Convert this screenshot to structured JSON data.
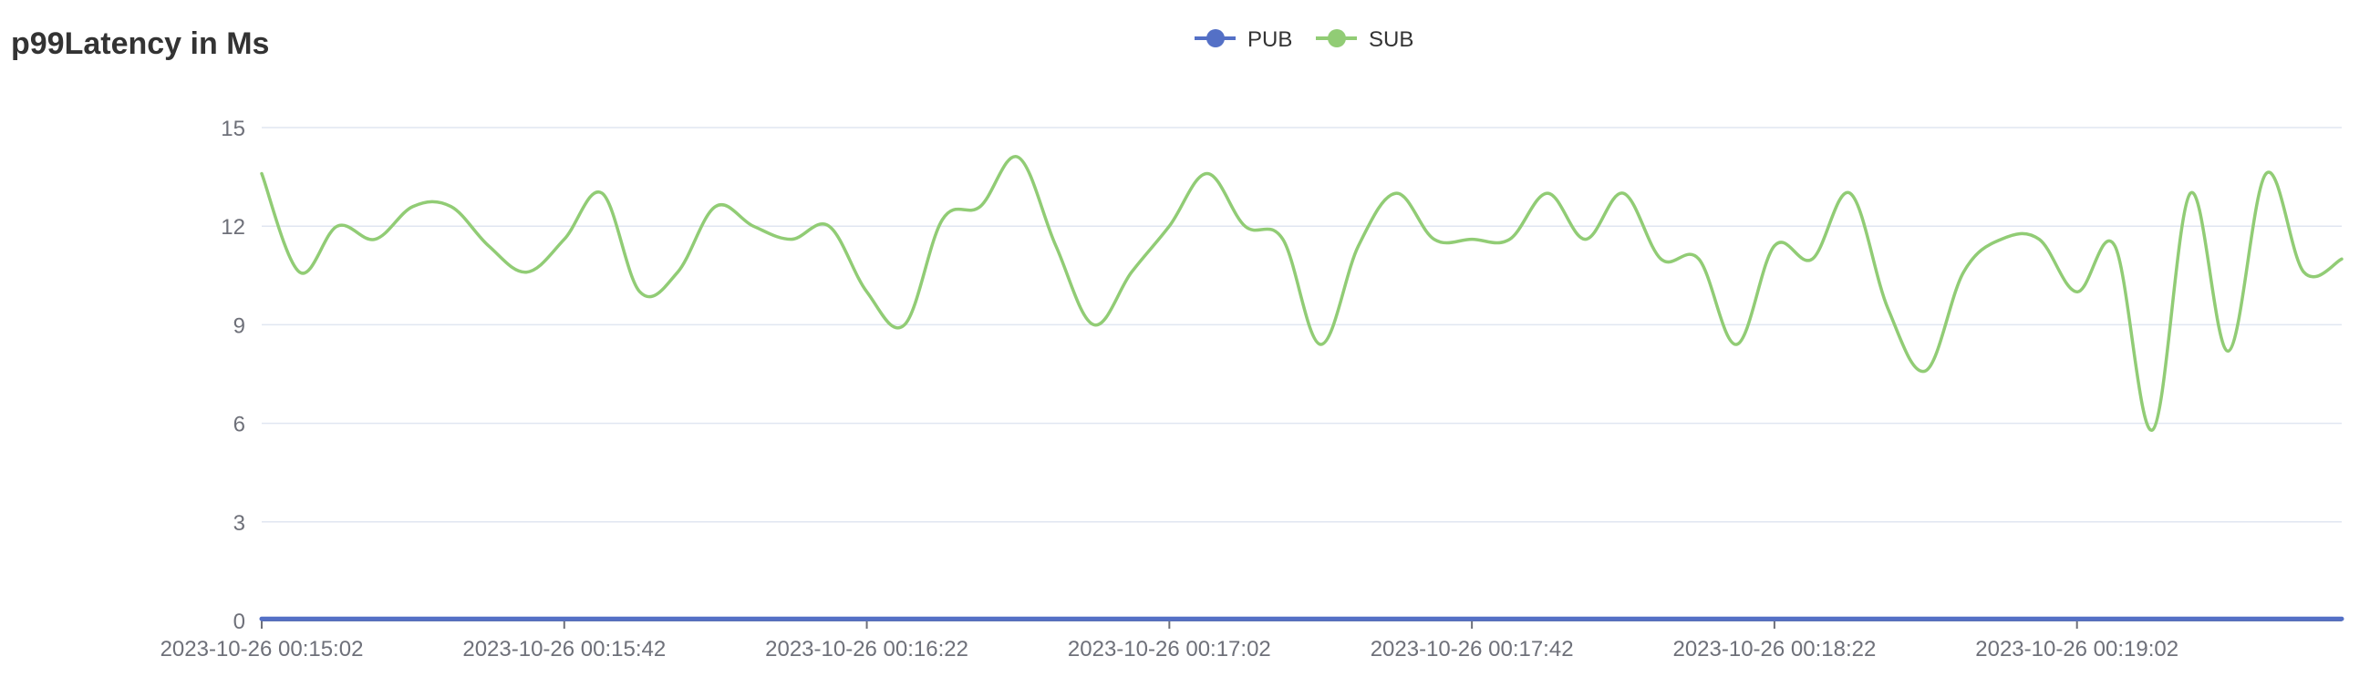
{
  "chart_data": {
    "type": "line",
    "title": "p99Latency in Ms",
    "xlabel": "",
    "ylabel": "",
    "ylim": [
      0,
      15
    ],
    "yticks": [
      "0",
      "3",
      "6",
      "9",
      "12",
      "15"
    ],
    "grid": true,
    "legend_position": "top-center",
    "x_tick_labels": [
      "2023-10-26 00:15:02",
      "2023-10-26 00:15:42",
      "2023-10-26 00:16:22",
      "2023-10-26 00:17:02",
      "2023-10-26 00:17:42",
      "2023-10-26 00:18:22",
      "2023-10-26 00:19:02"
    ],
    "x_range_seconds": [
      0,
      275
    ],
    "x_tick_seconds": [
      0,
      40,
      80,
      120,
      160,
      200,
      240
    ],
    "series": [
      {
        "name": "PUB",
        "color": "#5470c6",
        "x": [
          0,
          275
        ],
        "values": [
          0.05,
          0.05
        ]
      },
      {
        "name": "SUB",
        "color": "#91cc75",
        "x": [
          0,
          5,
          10,
          15,
          20,
          25,
          30,
          35,
          40,
          45,
          50,
          55,
          60,
          65,
          70,
          75,
          80,
          85,
          90,
          95,
          100,
          105,
          110,
          115,
          120,
          125,
          130,
          135,
          140,
          145,
          150,
          155,
          160,
          165,
          170,
          175,
          180,
          185,
          190,
          195,
          200,
          205,
          210,
          215,
          220,
          225,
          230,
          235,
          240,
          245,
          250,
          255,
          260,
          265,
          270,
          275
        ],
        "values": [
          13.6,
          10.6,
          12.0,
          11.6,
          12.6,
          12.6,
          11.4,
          10.6,
          11.6,
          13.0,
          10.0,
          10.6,
          12.6,
          12.0,
          11.6,
          12.0,
          10.0,
          9.0,
          12.2,
          12.6,
          14.1,
          11.4,
          9.0,
          10.6,
          12.0,
          13.6,
          12.0,
          11.6,
          8.4,
          11.4,
          13.0,
          11.6,
          11.6,
          11.6,
          13.0,
          11.6,
          13.0,
          11.0,
          11.0,
          8.4,
          11.4,
          11.0,
          13.0,
          9.5,
          7.6,
          10.6,
          11.6,
          11.6,
          10.0,
          11.4,
          5.8,
          13.0,
          8.2,
          13.6,
          10.6,
          11.0
        ]
      }
    ]
  }
}
